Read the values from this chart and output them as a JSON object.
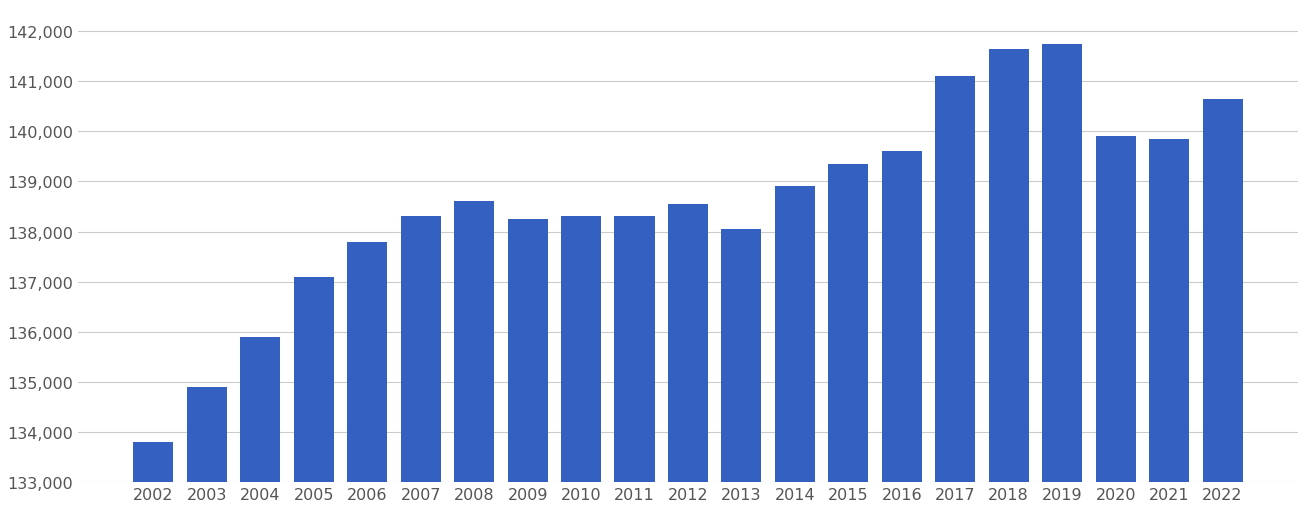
{
  "years": [
    2002,
    2003,
    2004,
    2005,
    2006,
    2007,
    2008,
    2009,
    2010,
    2011,
    2012,
    2013,
    2014,
    2015,
    2016,
    2017,
    2018,
    2019,
    2020,
    2021,
    2022
  ],
  "values": [
    133800,
    134900,
    135900,
    137100,
    137800,
    138300,
    138600,
    138250,
    138300,
    138300,
    138550,
    138050,
    138900,
    139350,
    139600,
    141100,
    141650,
    141750,
    139900,
    139850,
    140650
  ],
  "bar_color": "#3461C1",
  "background_color": "#ffffff",
  "grid_color": "#cccccc",
  "ylim_min": 133000,
  "ylim_max": 142500,
  "ytick_min": 133000,
  "ytick_max": 143000,
  "ytick_step": 1000,
  "tick_label_color": "#555555",
  "tick_fontsize": 11.5,
  "bar_bottom": 133000
}
